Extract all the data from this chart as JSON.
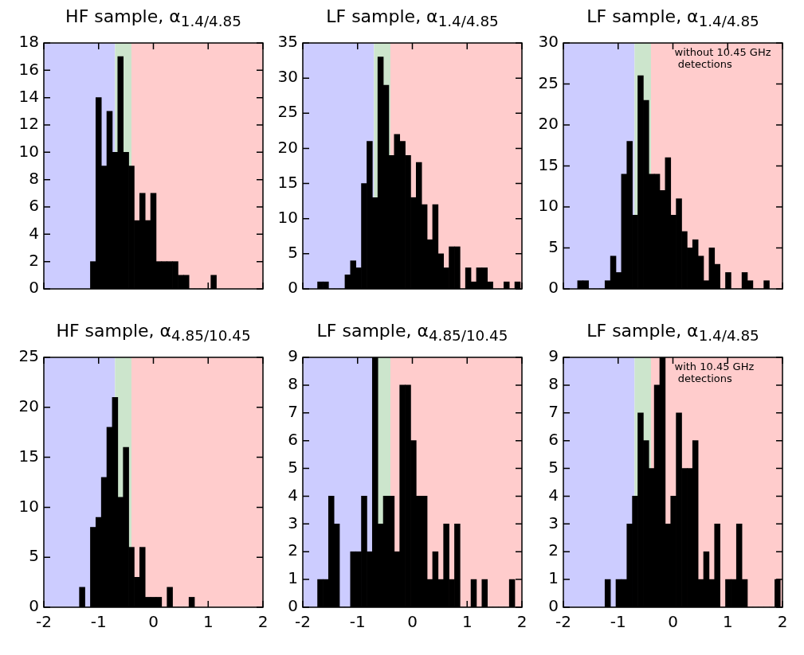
{
  "chart_data": [
    {
      "type": "histogram",
      "title": "HF sample, α$_{1.4/4.85}$",
      "color": "#000000",
      "bins": [
        -1.15,
        -1.05,
        -0.95,
        -0.85,
        -0.75,
        -0.65,
        -0.55,
        -0.45,
        -0.35,
        -0.25,
        -0.15,
        -0.05,
        0.05,
        0.15,
        0.25,
        0.35,
        0.45,
        0.55,
        0.65,
        0.75,
        0.85,
        0.95,
        1.05,
        1.15
      ],
      "values": [
        2,
        14,
        9,
        13,
        10,
        17,
        10,
        9,
        5,
        7,
        5,
        7,
        2,
        2,
        2,
        2,
        1,
        1,
        0,
        0,
        0,
        0,
        1
      ],
      "xlim": [
        -2,
        2
      ],
      "xticks": [
        -2,
        -1,
        0,
        1,
        2
      ],
      "ylim": [
        0,
        18
      ],
      "yticks": [
        0,
        2,
        4,
        6,
        8,
        10,
        12,
        14,
        16,
        18
      ],
      "tick_labels": "y",
      "bands": [
        {
          "axis": "x",
          "from": -2,
          "to": -0.7,
          "color": "#ccccff"
        },
        {
          "axis": "x",
          "from": -0.7,
          "to": -0.4,
          "color": "#cce5cc"
        },
        {
          "axis": "x",
          "from": -0.4,
          "to": 2,
          "color": "#ffcccc"
        }
      ]
    },
    {
      "type": "histogram",
      "title": "LF sample, α$_{1.4/4.85}$",
      "color": "#000000",
      "bins": [
        -1.73,
        -1.63,
        -1.53,
        -1.43,
        -1.33,
        -1.23,
        -1.13,
        -1.03,
        -0.93,
        -0.83,
        -0.73,
        -0.63,
        -0.53,
        -0.43,
        -0.33,
        -0.23,
        -0.13,
        -0.03,
        0.07,
        0.17,
        0.27,
        0.37,
        0.47,
        0.57,
        0.67,
        0.77,
        0.87,
        0.97,
        1.07,
        1.17,
        1.27,
        1.37,
        1.47,
        1.57,
        1.67,
        1.77,
        1.87,
        1.97
      ],
      "values": [
        1,
        1,
        0,
        0,
        0,
        2,
        4,
        3,
        15,
        21,
        13,
        33,
        29,
        19,
        22,
        21,
        19,
        13,
        18,
        12,
        7,
        12,
        5,
        3,
        6,
        6,
        0,
        3,
        1,
        3,
        3,
        1,
        0,
        0,
        1,
        0,
        1
      ],
      "xlim": [
        -2,
        2
      ],
      "xticks": [
        -2,
        -1,
        0,
        1,
        2
      ],
      "ylim": [
        0,
        35
      ],
      "yticks": [
        0,
        5,
        10,
        15,
        20,
        25,
        30,
        35
      ],
      "tick_labels": "y",
      "bands": [
        {
          "axis": "x",
          "from": -2,
          "to": -0.7,
          "color": "#ccccff"
        },
        {
          "axis": "x",
          "from": -0.7,
          "to": -0.4,
          "color": "#cce5cc"
        },
        {
          "axis": "x",
          "from": -0.4,
          "to": 2,
          "color": "#ffcccc"
        }
      ]
    },
    {
      "type": "histogram",
      "title": "LF sample, α$_{1.4/4.85}$",
      "color": "#000000",
      "annotations": [
        "without 10.45 GHz\n detections"
      ],
      "bins": [
        -1.74,
        -1.64,
        -1.54,
        -1.44,
        -1.34,
        -1.24,
        -1.14,
        -1.04,
        -0.94,
        -0.84,
        -0.74,
        -0.64,
        -0.54,
        -0.44,
        -0.34,
        -0.24,
        -0.14,
        -0.04,
        0.06,
        0.16,
        0.26,
        0.36,
        0.46,
        0.56,
        0.66,
        0.76,
        0.86,
        0.96,
        1.06,
        1.16,
        1.26,
        1.36,
        1.46,
        1.56,
        1.66,
        1.76
      ],
      "values": [
        1,
        1,
        0,
        0,
        0,
        1,
        4,
        2,
        14,
        18,
        9,
        26,
        23,
        14,
        14,
        12,
        16,
        9,
        11,
        7,
        5,
        6,
        4,
        1,
        5,
        3,
        0,
        2,
        0,
        0,
        2,
        1,
        0,
        0,
        1
      ],
      "xlim": [
        -2,
        2
      ],
      "xticks": [
        -2,
        -1,
        0,
        1,
        2
      ],
      "ylim": [
        0,
        30
      ],
      "yticks": [
        0,
        5,
        10,
        15,
        20,
        25,
        30
      ],
      "tick_labels": "y",
      "bands": [
        {
          "axis": "x",
          "from": -2,
          "to": -0.7,
          "color": "#ccccff"
        },
        {
          "axis": "x",
          "from": -0.7,
          "to": -0.4,
          "color": "#cce5cc"
        },
        {
          "axis": "x",
          "from": -0.4,
          "to": 2,
          "color": "#ffcccc"
        }
      ]
    },
    {
      "type": "histogram",
      "title": "HF sample, α$_{4.85/10.45}$",
      "color": "#000000",
      "bins": [
        -1.35,
        -1.25,
        -1.15,
        -1.05,
        -0.95,
        -0.85,
        -0.75,
        -0.65,
        -0.55,
        -0.45,
        -0.35,
        -0.25,
        -0.15,
        -0.05,
        0.05,
        0.15,
        0.25,
        0.35,
        0.45,
        0.55,
        0.65,
        0.75
      ],
      "values": [
        2,
        0,
        8,
        9,
        13,
        18,
        21,
        11,
        16,
        6,
        3,
        6,
        1,
        1,
        1,
        0,
        2,
        0,
        0,
        0,
        1
      ],
      "xlim": [
        -2,
        2
      ],
      "xticks": [
        -2,
        -1,
        0,
        1,
        2
      ],
      "ylim": [
        0,
        25
      ],
      "yticks": [
        0,
        5,
        10,
        15,
        20,
        25
      ],
      "bands": [
        {
          "axis": "x",
          "from": -2,
          "to": -0.7,
          "color": "#ccccff"
        },
        {
          "axis": "x",
          "from": -0.7,
          "to": -0.4,
          "color": "#cce5cc"
        },
        {
          "axis": "x",
          "from": -0.4,
          "to": 2,
          "color": "#ffcccc"
        }
      ]
    },
    {
      "type": "histogram",
      "title": "LF sample, α$_{4.85/10.45}$",
      "color": "#000000",
      "bins": [
        -1.73,
        -1.63,
        -1.53,
        -1.43,
        -1.33,
        -1.23,
        -1.13,
        -1.03,
        -0.93,
        -0.83,
        -0.73,
        -0.63,
        -0.53,
        -0.43,
        -0.33,
        -0.23,
        -0.13,
        -0.03,
        0.07,
        0.17,
        0.27,
        0.37,
        0.47,
        0.57,
        0.67,
        0.77,
        0.87,
        0.97,
        1.07,
        1.17,
        1.27,
        1.37,
        1.47,
        1.57,
        1.67,
        1.77,
        1.87
      ],
      "values": [
        1,
        1,
        4,
        3,
        0,
        0,
        2,
        2,
        4,
        2,
        9,
        3,
        4,
        4,
        2,
        8,
        8,
        6,
        4,
        4,
        1,
        2,
        1,
        3,
        1,
        3,
        0,
        0,
        1,
        0,
        1,
        0,
        0,
        0,
        0,
        1
      ],
      "xlim": [
        -2,
        2
      ],
      "xticks": [
        -2,
        -1,
        0,
        1,
        2
      ],
      "ylim": [
        0,
        9
      ],
      "yticks": [
        0,
        1,
        2,
        3,
        4,
        5,
        6,
        7,
        8,
        9
      ],
      "bands": [
        {
          "axis": "x",
          "from": -2,
          "to": -0.7,
          "color": "#ccccff"
        },
        {
          "axis": "x",
          "from": -0.7,
          "to": -0.4,
          "color": "#cce5cc"
        },
        {
          "axis": "x",
          "from": -0.4,
          "to": 2,
          "color": "#ffcccc"
        }
      ]
    },
    {
      "type": "histogram",
      "title": "LF sample, α$_{1.4/4.85}$",
      "color": "#000000",
      "annotations": [
        "with 10.45 GHz\n detections"
      ],
      "bins": [
        -1.24,
        -1.14,
        -1.04,
        -0.94,
        -0.84,
        -0.74,
        -0.64,
        -0.54,
        -0.44,
        -0.34,
        -0.24,
        -0.14,
        -0.04,
        0.06,
        0.16,
        0.26,
        0.36,
        0.46,
        0.56,
        0.66,
        0.76,
        0.86,
        0.96,
        1.06,
        1.16,
        1.26,
        1.36,
        1.46,
        1.56,
        1.66,
        1.76,
        1.86,
        1.96
      ],
      "values": [
        1,
        0,
        1,
        1,
        3,
        4,
        7,
        6,
        5,
        8,
        9,
        3,
        4,
        7,
        5,
        5,
        6,
        1,
        2,
        1,
        3,
        0,
        1,
        1,
        3,
        1,
        0,
        0,
        0,
        0,
        0,
        1
      ],
      "xlim": [
        -2,
        2
      ],
      "xticks": [
        -2,
        -1,
        0,
        1,
        2
      ],
      "ylim": [
        0,
        9
      ],
      "yticks": [
        0,
        1,
        2,
        3,
        4,
        5,
        6,
        7,
        8,
        9
      ],
      "bands": [
        {
          "axis": "x",
          "from": -2,
          "to": -0.7,
          "color": "#ccccff"
        },
        {
          "axis": "x",
          "from": -0.7,
          "to": -0.4,
          "color": "#cce5cc"
        },
        {
          "axis": "x",
          "from": -0.4,
          "to": 2,
          "color": "#ffcccc"
        }
      ]
    }
  ]
}
